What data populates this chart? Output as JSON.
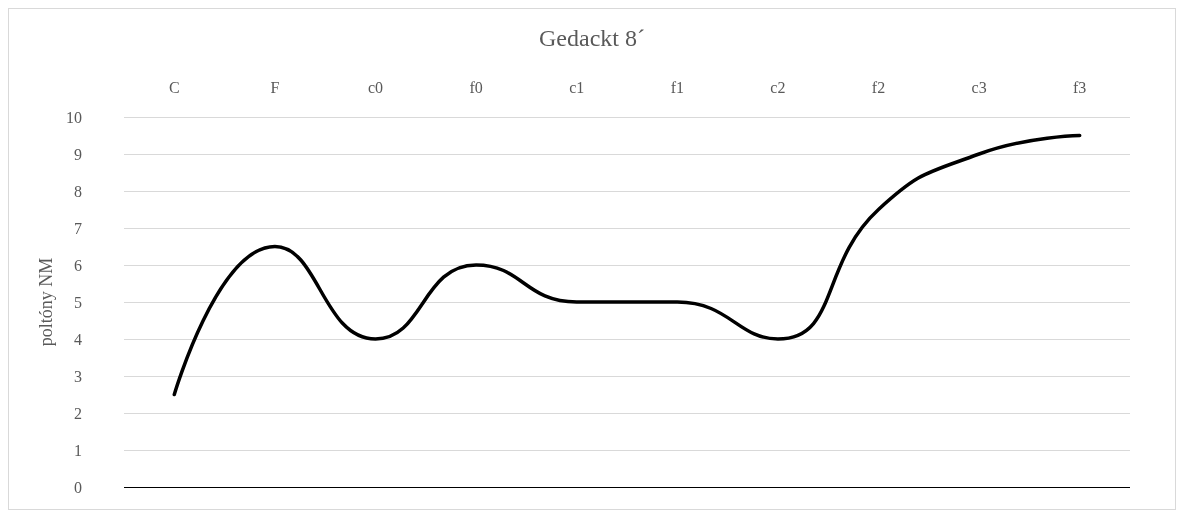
{
  "chart_data": {
    "type": "line",
    "title": "Gedackt 8´",
    "ylabel": "poltóny NM",
    "categories": [
      "C",
      "F",
      "c0",
      "f0",
      "c1",
      "f1",
      "c2",
      "f2",
      "c3",
      "f3"
    ],
    "series": [
      {
        "color": "#000000",
        "values": [
          2.5,
          6.5,
          4,
          6,
          5,
          5,
          4,
          7.5,
          9,
          9.5
        ]
      }
    ],
    "ylim": [
      0,
      10
    ],
    "yticks": [
      0,
      1,
      2,
      3,
      4,
      5,
      6,
      7,
      8,
      9,
      10
    ],
    "grid": "y",
    "marker": "none",
    "line_style": "solid"
  }
}
